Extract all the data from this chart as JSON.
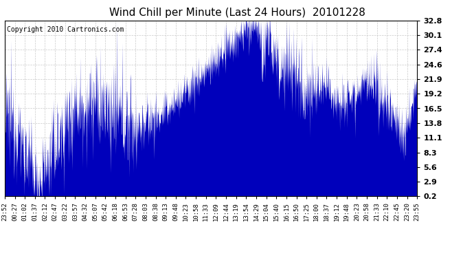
{
  "title": "Wind Chill per Minute (Last 24 Hours)  20101228",
  "copyright": "Copyright 2010 Cartronics.com",
  "yticks": [
    0.2,
    2.9,
    5.6,
    8.3,
    11.1,
    13.8,
    16.5,
    19.2,
    21.9,
    24.6,
    27.4,
    30.1,
    32.8
  ],
  "ymin": 0.2,
  "ymax": 32.8,
  "line_color": "#0000bb",
  "background_color": "#ffffff",
  "grid_color": "#bbbbbb",
  "xtick_labels": [
    "23:52",
    "00:27",
    "01:02",
    "01:37",
    "02:12",
    "02:47",
    "03:22",
    "03:57",
    "04:32",
    "05:07",
    "05:42",
    "06:18",
    "06:53",
    "07:28",
    "08:03",
    "08:38",
    "09:13",
    "09:48",
    "10:23",
    "10:58",
    "11:33",
    "12:09",
    "12:44",
    "13:19",
    "13:54",
    "14:29",
    "15:04",
    "15:40",
    "16:15",
    "16:50",
    "17:25",
    "18:00",
    "18:37",
    "19:12",
    "19:48",
    "20:23",
    "20:58",
    "21:33",
    "22:10",
    "22:45",
    "23:20",
    "23:55"
  ],
  "title_fontsize": 11,
  "copyright_fontsize": 7,
  "tick_fontsize": 6.5,
  "ytick_fontsize": 8,
  "figwidth": 6.9,
  "figheight": 3.75,
  "dpi": 100
}
